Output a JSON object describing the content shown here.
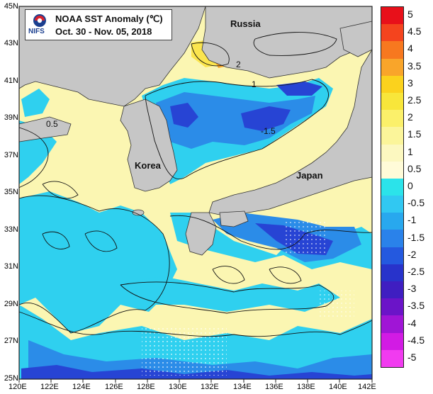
{
  "title": {
    "line1": "NOAA SST Anomaly (℃)",
    "line2": "Oct. 30 - Nov. 05, 2018",
    "org": "NIFS"
  },
  "places": [
    {
      "id": "russia",
      "label": "Russia"
    },
    {
      "id": "korea",
      "label": "Korea"
    },
    {
      "id": "japan",
      "label": "Japan"
    }
  ],
  "contour_labels": [
    "2",
    "1",
    "0.5",
    "-1.5"
  ],
  "axes": {
    "x_ticks": [
      "120E",
      "122E",
      "124E",
      "126E",
      "128E",
      "130E",
      "132E",
      "134E",
      "136E",
      "138E",
      "140E",
      "142E"
    ],
    "y_ticks": [
      "45N",
      "43N",
      "41N",
      "39N",
      "37N",
      "35N",
      "33N",
      "31N",
      "29N",
      "27N",
      "25N"
    ],
    "lon_range": [
      120,
      142
    ],
    "lat_range": [
      25,
      45
    ]
  },
  "colorbar": {
    "labels": [
      "5",
      "4.5",
      "4",
      "3.5",
      "3",
      "2.5",
      "2",
      "1.5",
      "1",
      "0.5",
      "0",
      "-0.5",
      "-1",
      "-1.5",
      "-2",
      "-2.5",
      "-3",
      "-3.5",
      "-4",
      "-4.5",
      "-5"
    ],
    "colors": [
      "#e8101a",
      "#f4441e",
      "#f7781f",
      "#f9a52a",
      "#fbd21d",
      "#f8e63a",
      "#fbf06a",
      "#fbf59a",
      "#fcf8c0",
      "#fffbd8",
      "#2be3ea",
      "#31c8f2",
      "#28a8ee",
      "#2a82ea",
      "#2459df",
      "#2833cb",
      "#3f1ec1",
      "#6b14c8",
      "#a015d6",
      "#d21be4",
      "#f13bf0"
    ]
  },
  "colors": {
    "land": "#c6c6c6",
    "warm": "#fbf6b2",
    "cool_cyan": "#2fd0ef",
    "cool_blue": "#2b8ce8",
    "cool_deep": "#2744d4"
  }
}
